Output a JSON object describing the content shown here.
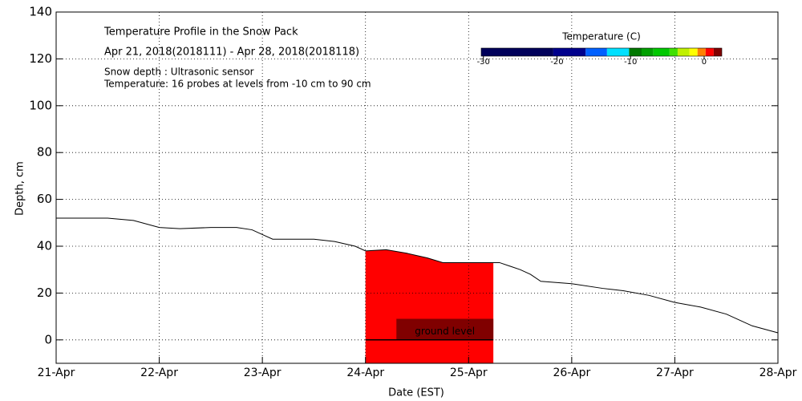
{
  "chart_data": {
    "type": "line",
    "title": "Temperature Profile in the Snow Pack",
    "subtitle": "Apr 21, 2018(2018111) - Apr 28, 2018(2018118)",
    "annotations": [
      "Snow depth : Ultrasonic sensor",
      "Temperature: 16 probes at levels from -10 cm to 90 cm"
    ],
    "ground_label": "ground level",
    "x_label": "Date (EST)",
    "y_label": "Depth, cm",
    "xlim": [
      21,
      28
    ],
    "xticks": [
      {
        "value": 21,
        "label": "21-Apr"
      },
      {
        "value": 22,
        "label": "22-Apr"
      },
      {
        "value": 23,
        "label": "23-Apr"
      },
      {
        "value": 24,
        "label": "24-Apr"
      },
      {
        "value": 25,
        "label": "25-Apr"
      },
      {
        "value": 26,
        "label": "26-Apr"
      },
      {
        "value": 27,
        "label": "27-Apr"
      },
      {
        "value": 28,
        "label": "28-Apr"
      }
    ],
    "ylim": [
      -10,
      140
    ],
    "yticks": [
      0,
      20,
      40,
      60,
      80,
      100,
      120,
      140
    ],
    "grid": true,
    "series": [
      {
        "name": "Snow depth",
        "color": "#000000",
        "x": [
          21.0,
          21.5,
          21.75,
          22.0,
          22.2,
          22.5,
          22.75,
          22.9,
          23.0,
          23.1,
          23.3,
          23.5,
          23.7,
          23.9,
          24.0,
          24.2,
          24.4,
          24.6,
          24.75,
          25.0,
          25.3,
          25.5,
          25.6,
          25.7,
          26.0,
          26.3,
          26.5,
          26.75,
          27.0,
          27.25,
          27.5,
          27.75,
          28.0
        ],
        "values": [
          52,
          52,
          51,
          48,
          47.5,
          48,
          48,
          47,
          45,
          43,
          43,
          43,
          42,
          40,
          38,
          38.5,
          37,
          35,
          33,
          33,
          33,
          30,
          28,
          25,
          24,
          22,
          21,
          19,
          16,
          14,
          11,
          6,
          3
        ]
      }
    ],
    "temperature_cells": [
      {
        "x": [
          24.0,
          25.24
        ],
        "y": [
          -10,
          40
        ],
        "temperature": 0.5
      },
      {
        "x": [
          24.3,
          25.24
        ],
        "y": [
          0,
          9
        ],
        "temperature": 2.0
      }
    ],
    "colorbar": {
      "title": "Temperature (C)",
      "lim": [
        -30.3,
        2.4
      ],
      "ticks": [
        -30,
        -20,
        -10,
        0
      ],
      "bins": [
        -30.3,
        -20.5,
        -16.1,
        -13.2,
        -10.2,
        -8.5,
        -6.9,
        -4.7,
        -3.6,
        -2.0,
        -0.9,
        0.2,
        1.3,
        2.4
      ],
      "colors": [
        "#00005a",
        "#00008c",
        "#0060ff",
        "#00e0ff",
        "#007800",
        "#00a000",
        "#00c800",
        "#40e000",
        "#c0f000",
        "#ffff00",
        "#ff8000",
        "#ff0000",
        "#800000"
      ]
    }
  }
}
